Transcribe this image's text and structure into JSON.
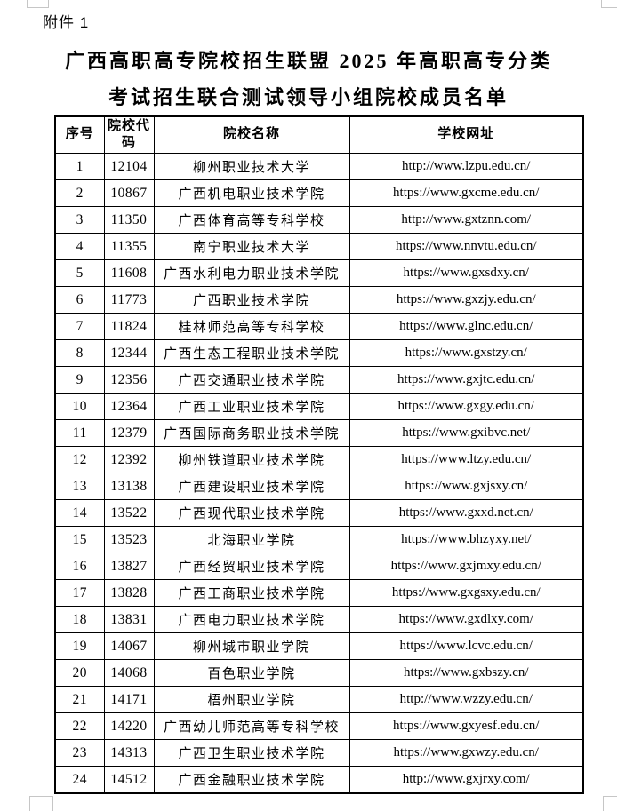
{
  "page": {
    "attachment_label": "附件 1",
    "title_line1": "广西高职高专院校招生联盟 2025 年高职高专分类",
    "title_line2": "考试招生联合测试领导小组院校成员名单",
    "colors": {
      "text": "#000000",
      "table_border": "#000000",
      "crop_mark": "#c6c6c6",
      "background": "#ffffff"
    }
  },
  "table": {
    "headers": [
      "序号",
      "院校代码",
      "院校名称",
      "学校网址"
    ],
    "rows": [
      {
        "no": "1",
        "code": "12104",
        "name": "柳州职业技术大学",
        "url": "http://www.lzpu.edu.cn/"
      },
      {
        "no": "2",
        "code": "10867",
        "name": "广西机电职业技术学院",
        "url": "https://www.gxcme.edu.cn/"
      },
      {
        "no": "3",
        "code": "11350",
        "name": "广西体育高等专科学校",
        "url": "http://www.gxtznn.com/"
      },
      {
        "no": "4",
        "code": "11355",
        "name": "南宁职业技术大学",
        "url": "https://www.nnvtu.edu.cn/"
      },
      {
        "no": "5",
        "code": "11608",
        "name": "广西水利电力职业技术学院",
        "url": "https://www.gxsdxy.cn/"
      },
      {
        "no": "6",
        "code": "11773",
        "name": "广西职业技术学院",
        "url": "https://www.gxzjy.edu.cn/"
      },
      {
        "no": "7",
        "code": "11824",
        "name": "桂林师范高等专科学校",
        "url": "https://www.glnc.edu.cn/"
      },
      {
        "no": "8",
        "code": "12344",
        "name": "广西生态工程职业技术学院",
        "url": "https://www.gxstzy.cn/"
      },
      {
        "no": "9",
        "code": "12356",
        "name": "广西交通职业技术学院",
        "url": "https://www.gxjtc.edu.cn/"
      },
      {
        "no": "10",
        "code": "12364",
        "name": "广西工业职业技术学院",
        "url": "https://www.gxgy.edu.cn/"
      },
      {
        "no": "11",
        "code": "12379",
        "name": "广西国际商务职业技术学院",
        "url": "https://www.gxibvc.net/"
      },
      {
        "no": "12",
        "code": "12392",
        "name": "柳州铁道职业技术学院",
        "url": "https://www.ltzy.edu.cn/"
      },
      {
        "no": "13",
        "code": "13138",
        "name": "广西建设职业技术学院",
        "url": "https://www.gxjsxy.cn/"
      },
      {
        "no": "14",
        "code": "13522",
        "name": "广西现代职业技术学院",
        "url": "https://www.gxxd.net.cn/"
      },
      {
        "no": "15",
        "code": "13523",
        "name": "北海职业学院",
        "url": "https://www.bhzyxy.net/"
      },
      {
        "no": "16",
        "code": "13827",
        "name": "广西经贸职业技术学院",
        "url": "https://www.gxjmxy.edu.cn/"
      },
      {
        "no": "17",
        "code": "13828",
        "name": "广西工商职业技术学院",
        "url": "https://www.gxgsxy.edu.cn/"
      },
      {
        "no": "18",
        "code": "13831",
        "name": "广西电力职业技术学院",
        "url": "https://www.gxdlxy.com/"
      },
      {
        "no": "19",
        "code": "14067",
        "name": "柳州城市职业学院",
        "url": "https://www.lcvc.edu.cn/"
      },
      {
        "no": "20",
        "code": "14068",
        "name": "百色职业学院",
        "url": "https://www.gxbszy.cn/"
      },
      {
        "no": "21",
        "code": "14171",
        "name": "梧州职业学院",
        "url": "http://www.wzzy.edu.cn/"
      },
      {
        "no": "22",
        "code": "14220",
        "name": "广西幼儿师范高等专科学校",
        "url": "https://www.gxyesf.edu.cn/"
      },
      {
        "no": "23",
        "code": "14313",
        "name": "广西卫生职业技术学院",
        "url": "https://www.gxwzy.edu.cn/"
      },
      {
        "no": "24",
        "code": "14512",
        "name": "广西金融职业技术学院",
        "url": "http://www.gxjrxy.com/"
      }
    ]
  }
}
